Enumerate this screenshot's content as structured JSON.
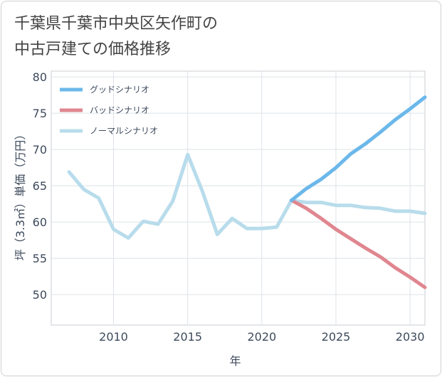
{
  "title_lines": [
    "千葉県千葉市中央区矢作町の",
    "中古戸建ての価格推移"
  ],
  "chart_data": {
    "type": "line",
    "title": "千葉県千葉市中央区矢作町の中古戸建ての価格推移",
    "xlabel": "年",
    "ylabel": "坪（3.3㎡）単価（万円）",
    "xlim": [
      2005.8,
      2031
    ],
    "ylim": [
      45.8,
      80.8
    ],
    "xticks": [
      2010,
      2015,
      2020,
      2025,
      2030
    ],
    "yticks": [
      50,
      55,
      60,
      65,
      70,
      75,
      80
    ],
    "grid": true,
    "legend_position": "top-left",
    "series": [
      {
        "name": "グッドシナリオ",
        "color": "#6bb8ea",
        "x": [
          2022,
          2023,
          2024,
          2025,
          2026,
          2027,
          2028,
          2029,
          2030,
          2031
        ],
        "y": [
          63.0,
          64.6,
          65.9,
          67.5,
          69.4,
          70.8,
          72.4,
          74.1,
          75.6,
          77.2
        ]
      },
      {
        "name": "バッドシナリオ",
        "color": "#e0868f",
        "x": [
          2022,
          2023,
          2024,
          2025,
          2026,
          2027,
          2028,
          2029,
          2030,
          2031
        ],
        "y": [
          63.0,
          61.9,
          60.5,
          59.0,
          57.7,
          56.4,
          55.2,
          53.7,
          52.4,
          51.0
        ]
      },
      {
        "name": "ノーマルシナリオ",
        "color": "#b8dceb",
        "x": [
          2007,
          2008,
          2009,
          2010,
          2011,
          2012,
          2013,
          2014,
          2015,
          2016,
          2017,
          2018,
          2019,
          2020,
          2021,
          2022,
          2023,
          2024,
          2025,
          2026,
          2027,
          2028,
          2029,
          2030,
          2031
        ],
        "y": [
          66.9,
          64.5,
          63.3,
          59.0,
          57.8,
          60.1,
          59.7,
          62.9,
          69.3,
          64.2,
          58.3,
          60.5,
          59.1,
          59.1,
          59.3,
          63.0,
          62.7,
          62.7,
          62.3,
          62.3,
          62.0,
          61.9,
          61.5,
          61.5,
          61.2
        ]
      }
    ]
  }
}
